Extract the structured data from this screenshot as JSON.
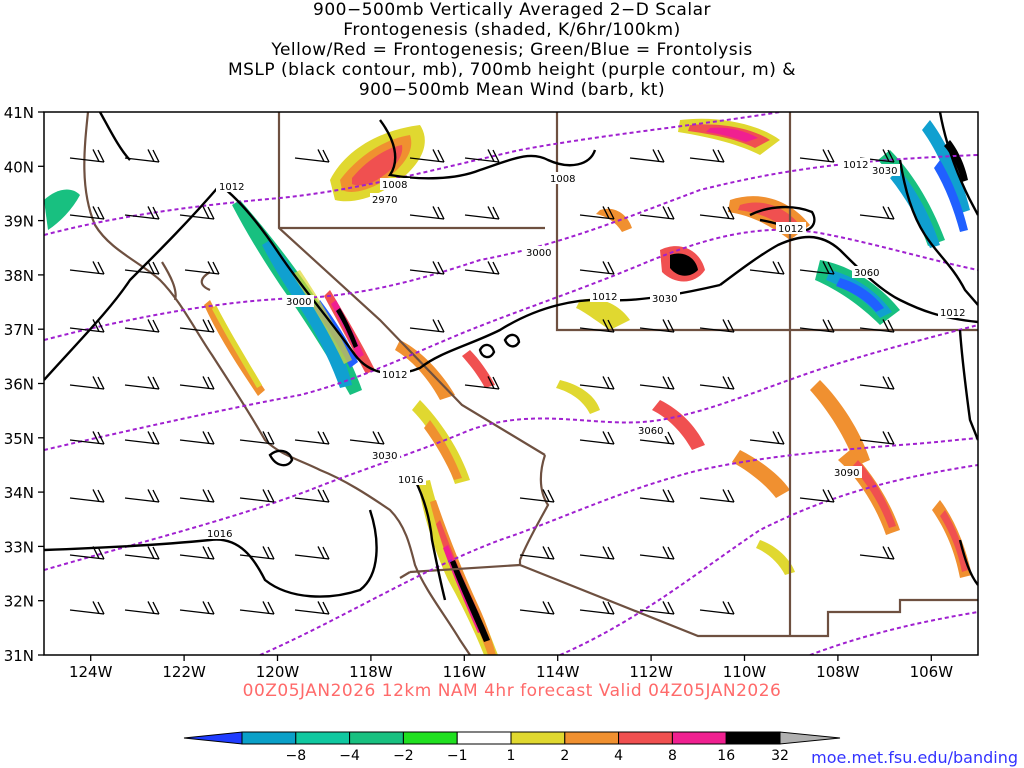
{
  "title_lines": [
    "900−500mb Vertically Averaged 2−D Scalar",
    "Frontogenesis (shaded, K/6hr/100km)",
    "Yellow/Red = Frontogenesis;  Green/Blue = Frontolysis",
    "MSLP (black contour, mb), 700mb height (purple contour, m) &",
    "900−500mb Mean Wind (barb, kt)"
  ],
  "forecast_label": "00Z05JAN2026 12km NAM 4hr forecast Valid 04Z05JAN2026",
  "credit": "moe.met.fsu.edu/banding",
  "axes": {
    "lat_labels": [
      "41N",
      "40N",
      "39N",
      "38N",
      "37N",
      "36N",
      "35N",
      "34N",
      "33N",
      "32N",
      "31N"
    ],
    "lon_labels": [
      "124W",
      "122W",
      "120W",
      "118W",
      "116W",
      "114W",
      "112W",
      "110W",
      "108W",
      "106W"
    ]
  },
  "colorbar": {
    "labels": [
      "−8",
      "−4",
      "−2",
      "−1",
      "1",
      "2",
      "4",
      "8",
      "16",
      "32"
    ],
    "colors": [
      "#1f3cff",
      "#0aa0c8",
      "#10c8a0",
      "#18c080",
      "#20e020",
      "#ffffff",
      "#e0d830",
      "#f09030",
      "#f05050",
      "#f02090",
      "#000000",
      "#b0b0b0"
    ]
  },
  "mslp_labels": [
    "1012",
    "1008",
    "1008",
    "1012",
    "1012",
    "1012",
    "1012",
    "1016",
    "1016"
  ],
  "height_labels": [
    "2970",
    "3000",
    "3000",
    "3030",
    "3030",
    "3060",
    "3030",
    "3060",
    "3090"
  ],
  "colors": {
    "height_contour": "#a020d0",
    "mslp_contour": "#000000",
    "boundary": "#6e5040",
    "barb": "#000000"
  }
}
